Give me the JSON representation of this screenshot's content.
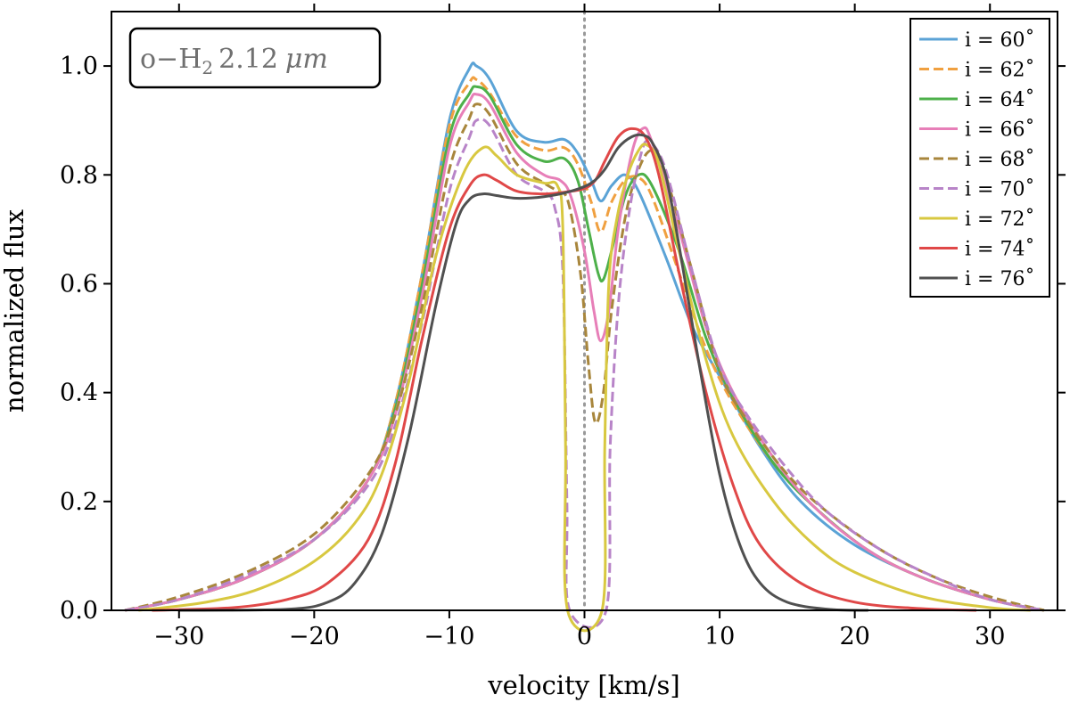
{
  "chart_data": {
    "type": "line",
    "title": "",
    "annotation": {
      "species": "o−H",
      "subscript": "2",
      "wavelength": "2.12",
      "unit": "μm"
    },
    "xlabel": "velocity [km/s]",
    "ylabel": "normalized flux",
    "xlim": [
      -35,
      35
    ],
    "ylim": [
      0,
      1.1
    ],
    "xticks": [
      -30,
      -20,
      -10,
      0,
      10,
      20,
      30
    ],
    "xtick_labels": [
      "−30",
      "−20",
      "−10",
      "0",
      "10",
      "20",
      "30"
    ],
    "yticks": [
      0.0,
      0.2,
      0.4,
      0.6,
      0.8,
      1.0
    ],
    "ytick_labels": [
      "0.0",
      "0.2",
      "0.4",
      "0.6",
      "0.8",
      "1.0"
    ],
    "reference_line": {
      "x": 0,
      "style": "dotted",
      "color": "#999999"
    },
    "legend_position": "top-right",
    "series": [
      {
        "name": "i = 60˚",
        "color": "#5ba3d6",
        "dash": "solid",
        "points": [
          [
            -34,
            0
          ],
          [
            -30,
            0.02
          ],
          [
            -25,
            0.06
          ],
          [
            -20,
            0.13
          ],
          [
            -16,
            0.24
          ],
          [
            -14,
            0.38
          ],
          [
            -12,
            0.62
          ],
          [
            -10,
            0.9
          ],
          [
            -8.5,
            0.996
          ],
          [
            -8,
            1.0
          ],
          [
            -7,
            0.975
          ],
          [
            -5,
            0.88
          ],
          [
            -3,
            0.86
          ],
          [
            -1.5,
            0.865
          ],
          [
            -0.5,
            0.84
          ],
          [
            0.5,
            0.79
          ],
          [
            1.2,
            0.752
          ],
          [
            2,
            0.78
          ],
          [
            3,
            0.8
          ],
          [
            4,
            0.77
          ],
          [
            6,
            0.65
          ],
          [
            8,
            0.52
          ],
          [
            10,
            0.43
          ],
          [
            13,
            0.3
          ],
          [
            16,
            0.2
          ],
          [
            20,
            0.12
          ],
          [
            25,
            0.06
          ],
          [
            30,
            0.02
          ],
          [
            34,
            0
          ]
        ]
      },
      {
        "name": "i = 62˚",
        "color": "#f0a040",
        "dash": "dashed",
        "points": [
          [
            -34,
            0
          ],
          [
            -30,
            0.02
          ],
          [
            -25,
            0.06
          ],
          [
            -20,
            0.13
          ],
          [
            -16,
            0.24
          ],
          [
            -14,
            0.38
          ],
          [
            -12,
            0.62
          ],
          [
            -10,
            0.89
          ],
          [
            -8.5,
            0.97
          ],
          [
            -8,
            0.975
          ],
          [
            -7,
            0.95
          ],
          [
            -5,
            0.87
          ],
          [
            -3,
            0.845
          ],
          [
            -1.5,
            0.85
          ],
          [
            -0.5,
            0.82
          ],
          [
            0.5,
            0.75
          ],
          [
            1.2,
            0.695
          ],
          [
            2,
            0.75
          ],
          [
            3,
            0.79
          ],
          [
            4,
            0.795
          ],
          [
            5,
            0.76
          ],
          [
            7,
            0.62
          ],
          [
            9,
            0.48
          ],
          [
            11,
            0.38
          ],
          [
            14,
            0.27
          ],
          [
            17,
            0.19
          ],
          [
            21,
            0.11
          ],
          [
            25,
            0.06
          ],
          [
            30,
            0.02
          ],
          [
            34,
            0
          ]
        ]
      },
      {
        "name": "i = 64˚",
        "color": "#4db04a",
        "dash": "solid",
        "points": [
          [
            -34,
            0
          ],
          [
            -30,
            0.02
          ],
          [
            -25,
            0.06
          ],
          [
            -20,
            0.13
          ],
          [
            -16,
            0.24
          ],
          [
            -14,
            0.37
          ],
          [
            -12,
            0.6
          ],
          [
            -10,
            0.87
          ],
          [
            -8.5,
            0.95
          ],
          [
            -8,
            0.962
          ],
          [
            -7,
            0.945
          ],
          [
            -5,
            0.855
          ],
          [
            -3,
            0.825
          ],
          [
            -1.5,
            0.83
          ],
          [
            -0.5,
            0.79
          ],
          [
            0.3,
            0.7
          ],
          [
            1,
            0.62
          ],
          [
            1.4,
            0.608
          ],
          [
            2,
            0.66
          ],
          [
            3,
            0.76
          ],
          [
            4,
            0.8
          ],
          [
            5,
            0.78
          ],
          [
            7,
            0.66
          ],
          [
            9,
            0.5
          ],
          [
            11,
            0.39
          ],
          [
            14,
            0.27
          ],
          [
            17,
            0.19
          ],
          [
            21,
            0.11
          ],
          [
            25,
            0.06
          ],
          [
            30,
            0.02
          ],
          [
            34,
            0
          ]
        ]
      },
      {
        "name": "i = 66˚",
        "color": "#e77fb8",
        "dash": "solid",
        "points": [
          [
            -34,
            0
          ],
          [
            -30,
            0.02
          ],
          [
            -25,
            0.06
          ],
          [
            -20,
            0.13
          ],
          [
            -16,
            0.24
          ],
          [
            -14,
            0.36
          ],
          [
            -12,
            0.58
          ],
          [
            -10,
            0.85
          ],
          [
            -8.5,
            0.935
          ],
          [
            -8,
            0.948
          ],
          [
            -7,
            0.93
          ],
          [
            -5,
            0.84
          ],
          [
            -3,
            0.8
          ],
          [
            -1.8,
            0.79
          ],
          [
            -1,
            0.76
          ],
          [
            0,
            0.66
          ],
          [
            0.7,
            0.55
          ],
          [
            1.2,
            0.495
          ],
          [
            1.8,
            0.55
          ],
          [
            2.5,
            0.7
          ],
          [
            3.5,
            0.84
          ],
          [
            4.3,
            0.885
          ],
          [
            5,
            0.86
          ],
          [
            7,
            0.7
          ],
          [
            9,
            0.52
          ],
          [
            11,
            0.4
          ],
          [
            14,
            0.28
          ],
          [
            17,
            0.19
          ],
          [
            21,
            0.11
          ],
          [
            25,
            0.06
          ],
          [
            30,
            0.02
          ],
          [
            34,
            0
          ]
        ]
      },
      {
        "name": "i = 68˚",
        "color": "#a8863c",
        "dash": "dashed",
        "points": [
          [
            -34,
            0
          ],
          [
            -30,
            0.025
          ],
          [
            -25,
            0.07
          ],
          [
            -20,
            0.14
          ],
          [
            -16,
            0.25
          ],
          [
            -14,
            0.36
          ],
          [
            -12,
            0.56
          ],
          [
            -10,
            0.81
          ],
          [
            -8.5,
            0.905
          ],
          [
            -8,
            0.93
          ],
          [
            -7,
            0.91
          ],
          [
            -5,
            0.82
          ],
          [
            -3,
            0.785
          ],
          [
            -2,
            0.77
          ],
          [
            -1.2,
            0.75
          ],
          [
            -0.3,
            0.62
          ],
          [
            0.3,
            0.45
          ],
          [
            0.8,
            0.345
          ],
          [
            1.4,
            0.4
          ],
          [
            2,
            0.55
          ],
          [
            3,
            0.72
          ],
          [
            4,
            0.81
          ],
          [
            5,
            0.845
          ],
          [
            6,
            0.8
          ],
          [
            8,
            0.62
          ],
          [
            10,
            0.44
          ],
          [
            12,
            0.35
          ],
          [
            15,
            0.25
          ],
          [
            18,
            0.18
          ],
          [
            22,
            0.11
          ],
          [
            26,
            0.06
          ],
          [
            30,
            0.025
          ],
          [
            34,
            0
          ]
        ]
      },
      {
        "name": "i = 70˚",
        "color": "#b884c8",
        "dash": "dashed",
        "points": [
          [
            -34,
            0
          ],
          [
            -30,
            0.02
          ],
          [
            -25,
            0.065
          ],
          [
            -20,
            0.13
          ],
          [
            -16,
            0.23
          ],
          [
            -14,
            0.34
          ],
          [
            -12,
            0.53
          ],
          [
            -10,
            0.77
          ],
          [
            -8.5,
            0.87
          ],
          [
            -8,
            0.9
          ],
          [
            -7,
            0.89
          ],
          [
            -5,
            0.8
          ],
          [
            -3,
            0.77
          ],
          [
            -2.2,
            0.74
          ],
          [
            -1.6,
            0.62
          ],
          [
            -1.3,
            0.2
          ],
          [
            -1.1,
            0
          ],
          [
            1.6,
            0
          ],
          [
            1.9,
            0.3
          ],
          [
            2.5,
            0.56
          ],
          [
            3.3,
            0.73
          ],
          [
            4.2,
            0.84
          ],
          [
            4.8,
            0.86
          ],
          [
            6,
            0.81
          ],
          [
            8,
            0.62
          ],
          [
            10,
            0.45
          ],
          [
            12,
            0.36
          ],
          [
            15,
            0.26
          ],
          [
            18,
            0.18
          ],
          [
            22,
            0.11
          ],
          [
            26,
            0.06
          ],
          [
            30,
            0.02
          ],
          [
            34,
            0
          ]
        ]
      },
      {
        "name": "i = 72˚",
        "color": "#d8c840",
        "dash": "solid",
        "points": [
          [
            -33,
            0
          ],
          [
            -28,
            0.015
          ],
          [
            -24,
            0.04
          ],
          [
            -20,
            0.09
          ],
          [
            -17,
            0.16
          ],
          [
            -15,
            0.25
          ],
          [
            -13,
            0.42
          ],
          [
            -11,
            0.65
          ],
          [
            -9,
            0.8
          ],
          [
            -7.5,
            0.85
          ],
          [
            -6.5,
            0.835
          ],
          [
            -5,
            0.8
          ],
          [
            -3,
            0.785
          ],
          [
            -2,
            0.78
          ],
          [
            -1.6,
            0.7
          ],
          [
            -1.4,
            0.3
          ],
          [
            -1.25,
            0
          ],
          [
            1.3,
            0
          ],
          [
            1.5,
            0.3
          ],
          [
            1.8,
            0.6
          ],
          [
            2.4,
            0.72
          ],
          [
            3.2,
            0.8
          ],
          [
            4,
            0.845
          ],
          [
            4.6,
            0.855
          ],
          [
            5.5,
            0.82
          ],
          [
            7,
            0.66
          ],
          [
            9,
            0.46
          ],
          [
            11,
            0.32
          ],
          [
            14,
            0.2
          ],
          [
            17,
            0.12
          ],
          [
            20,
            0.07
          ],
          [
            25,
            0.025
          ],
          [
            30,
            0.005
          ],
          [
            33,
            0
          ]
        ]
      },
      {
        "name": "i = 74˚",
        "color": "#e04848",
        "dash": "solid",
        "points": [
          [
            -32,
            0
          ],
          [
            -26,
            0.005
          ],
          [
            -22,
            0.02
          ],
          [
            -19,
            0.05
          ],
          [
            -16,
            0.13
          ],
          [
            -14,
            0.27
          ],
          [
            -12,
            0.5
          ],
          [
            -10,
            0.7
          ],
          [
            -8.5,
            0.78
          ],
          [
            -7.5,
            0.8
          ],
          [
            -6.5,
            0.79
          ],
          [
            -5,
            0.77
          ],
          [
            -3,
            0.765
          ],
          [
            -1,
            0.77
          ],
          [
            0,
            0.775
          ],
          [
            0.8,
            0.79
          ],
          [
            1.5,
            0.825
          ],
          [
            2.5,
            0.87
          ],
          [
            3.5,
            0.885
          ],
          [
            4.5,
            0.87
          ],
          [
            5.5,
            0.8
          ],
          [
            7,
            0.62
          ],
          [
            9,
            0.4
          ],
          [
            11,
            0.23
          ],
          [
            13,
            0.12
          ],
          [
            16,
            0.05
          ],
          [
            20,
            0.015
          ],
          [
            25,
            0.003
          ],
          [
            29,
            0
          ]
        ]
      },
      {
        "name": "i = 76˚",
        "color": "#505050",
        "dash": "solid",
        "points": [
          [
            -30,
            0
          ],
          [
            -22,
            0.002
          ],
          [
            -19,
            0.015
          ],
          [
            -17,
            0.05
          ],
          [
            -15,
            0.14
          ],
          [
            -13,
            0.32
          ],
          [
            -11,
            0.56
          ],
          [
            -9.5,
            0.71
          ],
          [
            -8.5,
            0.755
          ],
          [
            -7.5,
            0.765
          ],
          [
            -6.5,
            0.762
          ],
          [
            -5,
            0.757
          ],
          [
            -3,
            0.76
          ],
          [
            -1,
            0.77
          ],
          [
            0.5,
            0.785
          ],
          [
            1.5,
            0.81
          ],
          [
            2.5,
            0.85
          ],
          [
            3.5,
            0.87
          ],
          [
            4.3,
            0.873
          ],
          [
            5,
            0.86
          ],
          [
            6,
            0.8
          ],
          [
            7,
            0.67
          ],
          [
            8.5,
            0.45
          ],
          [
            10,
            0.25
          ],
          [
            11.5,
            0.12
          ],
          [
            13,
            0.05
          ],
          [
            15,
            0.015
          ],
          [
            18,
            0.002
          ],
          [
            21,
            0
          ]
        ]
      }
    ]
  }
}
